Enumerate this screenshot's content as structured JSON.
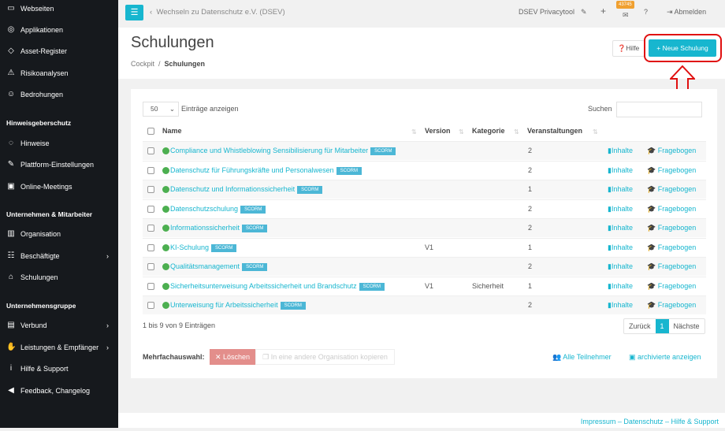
{
  "sidebar": {
    "items": [
      {
        "label": "Webseiten",
        "icon": "monitor-icon"
      },
      {
        "label": "Applikationen",
        "icon": "compass-icon"
      },
      {
        "label": "Asset-Register",
        "icon": "diamond-icon"
      },
      {
        "label": "Risikoanalysen",
        "icon": "warning-icon"
      },
      {
        "label": "Bedrohungen",
        "icon": "user-secret-icon"
      },
      {
        "label": "Hinweise",
        "icon": "eye-slash-icon"
      },
      {
        "label": "Plattform-Einstellungen",
        "icon": "wrench-icon"
      },
      {
        "label": "Online-Meetings",
        "icon": "video-icon"
      },
      {
        "label": "Organisation",
        "icon": "building-icon"
      },
      {
        "label": "Beschäftigte",
        "icon": "users-icon"
      },
      {
        "label": "Schulungen",
        "icon": "school-icon"
      },
      {
        "label": "Verbund",
        "icon": "industry-icon"
      },
      {
        "label": "Leistungen & Empfänger",
        "icon": "handshake-icon"
      },
      {
        "label": "Hilfe & Support",
        "icon": "info-icon"
      },
      {
        "label": "Feedback, Changelog",
        "icon": "megaphone-icon"
      }
    ],
    "sections": [
      "Hinweisgeberschutz",
      "Unternehmen & Mitarbeiter",
      "Unternehmensgruppe"
    ]
  },
  "topbar": {
    "back": "Wechseln zu Datenschutz e.V. (DSEV)",
    "app": "DSEV Privacytool",
    "badge": "43745",
    "logout": "Abmelden"
  },
  "page": {
    "title": "Schulungen",
    "crumb_home": "Cockpit",
    "crumb_current": "Schulungen",
    "help": "Hilfe",
    "new": "Neue Schulung"
  },
  "table": {
    "length": "50",
    "length_label": "Einträge anzeigen",
    "search_label": "Suchen",
    "headers": [
      "Name",
      "Version",
      "Kategorie",
      "Veranstaltungen"
    ],
    "scorm": "SCORM",
    "inhalte": "Inhalte",
    "fragebogen": "Fragebogen",
    "rows": [
      {
        "name": "Compliance und Whistleblowing Sensibilisierung für Mitarbeiter",
        "version": "",
        "kategorie": "",
        "veranstaltungen": "2"
      },
      {
        "name": "Datenschutz für Führungskräfte und Personalwesen",
        "version": "",
        "kategorie": "",
        "veranstaltungen": "2"
      },
      {
        "name": "Datenschutz und Informationssicherheit",
        "version": "",
        "kategorie": "",
        "veranstaltungen": "1"
      },
      {
        "name": "Datenschutzschulung",
        "version": "",
        "kategorie": "",
        "veranstaltungen": "2"
      },
      {
        "name": "Informationssicherheit",
        "version": "",
        "kategorie": "",
        "veranstaltungen": "2"
      },
      {
        "name": "KI-Schulung",
        "version": "V1",
        "kategorie": "",
        "veranstaltungen": "1"
      },
      {
        "name": "Qualitätsmanagement",
        "version": "",
        "kategorie": "",
        "veranstaltungen": "2"
      },
      {
        "name": "Sicherheitsunterweisung Arbeitssicherheit und Brandschutz",
        "version": "V1",
        "kategorie": "Sicherheit",
        "veranstaltungen": "1"
      },
      {
        "name": "Unterweisung für Arbeitssicherheit",
        "version": "",
        "kategorie": "",
        "veranstaltungen": "2"
      }
    ],
    "info": "1 bis 9 von 9 Einträgen",
    "prev": "Zurück",
    "page": "1",
    "next": "Nächste"
  },
  "bulk": {
    "label": "Mehrfachauswahl:",
    "delete": "Löschen",
    "copy": "In eine andere Organisation kopieren",
    "all": "Alle Teilnehmer",
    "archived": "archivierte anzeigen"
  },
  "footer": {
    "links": "Impressum – Datenschutz – Hilfe & Support"
  },
  "colors": {
    "accent": "#17b6cf",
    "sidebar": "#16191d",
    "danger": "#e38e8b"
  }
}
